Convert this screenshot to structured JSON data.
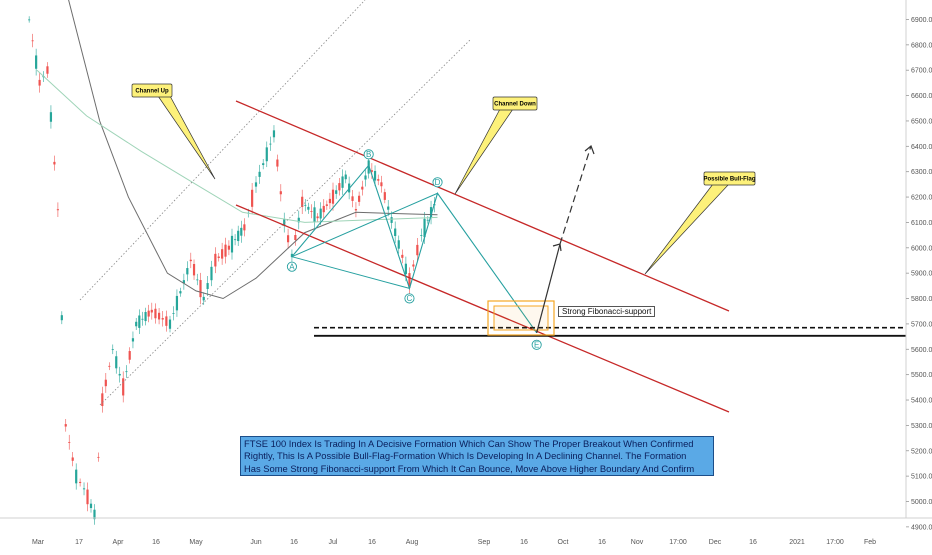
{
  "chart_data": {
    "type": "line",
    "title": "",
    "xlabel": "",
    "ylabel": "",
    "x_ticks": [
      "Mar",
      "17",
      "Apr",
      "16",
      "May",
      "Jun",
      "16",
      "Jul",
      "16",
      "Aug",
      "Sep",
      "16",
      "Oct",
      "16",
      "Nov",
      "17:00",
      "Dec",
      "16",
      "2021",
      "17:00",
      "Feb"
    ],
    "y_ticks": [
      6900.0,
      6800.0,
      6700.0,
      6600.0,
      6500.0,
      6400.0,
      6300.0,
      6200.0,
      6100.0,
      6000.0,
      5900.0,
      5800.0,
      5700.0,
      5600.0,
      5500.0,
      5400.0,
      5300.0,
      5200.0,
      5100.0,
      5000.0,
      4900.0
    ],
    "ylim": [
      4880,
      6950
    ],
    "grid": false,
    "wave_points": [
      {
        "label": "A",
        "date": "2020-06-15",
        "value": 5965
      },
      {
        "label": "B",
        "date": "2020-07-15",
        "value": 6325
      },
      {
        "label": "C",
        "date": "2020-07-31",
        "value": 5840
      },
      {
        "label": "D",
        "date": "2020-08-12",
        "value": 6215
      },
      {
        "label": "E",
        "date": "2020-09-21",
        "value": 5665
      }
    ],
    "levels": [
      {
        "name": "dashed-resistance",
        "value": 5685
      },
      {
        "name": "fibonacci-support",
        "value": 5665
      }
    ]
  },
  "annotations": {
    "channel_up": "Channel Up",
    "channel_down": "Channel Down",
    "possible_bull_flag": "Possible Bull-Flag",
    "fib_support": "Strong Fibonacci-support",
    "note_lines": [
      "FTSE 100 Index Is Trading In A Decisive Formation Which Can Show The Proper Breakout When Confirmed",
      "Rightly, This Is A Possible Bull-Flag-Formation Which Is Developing In A Declining Channel. The Formation",
      "Has Some Strong Fibonacci-support From Which It Can Bounce, Move Above Higher Boundary And Confirm"
    ]
  },
  "colors": {
    "channel": "#c62828",
    "wave": "#26a0a0",
    "up_candle": "#26a69a",
    "down_candle": "#ef5350",
    "callout_fill": "#fdf17a",
    "note_fill": "#5aa9e6",
    "fib_box": "#f5a623"
  }
}
